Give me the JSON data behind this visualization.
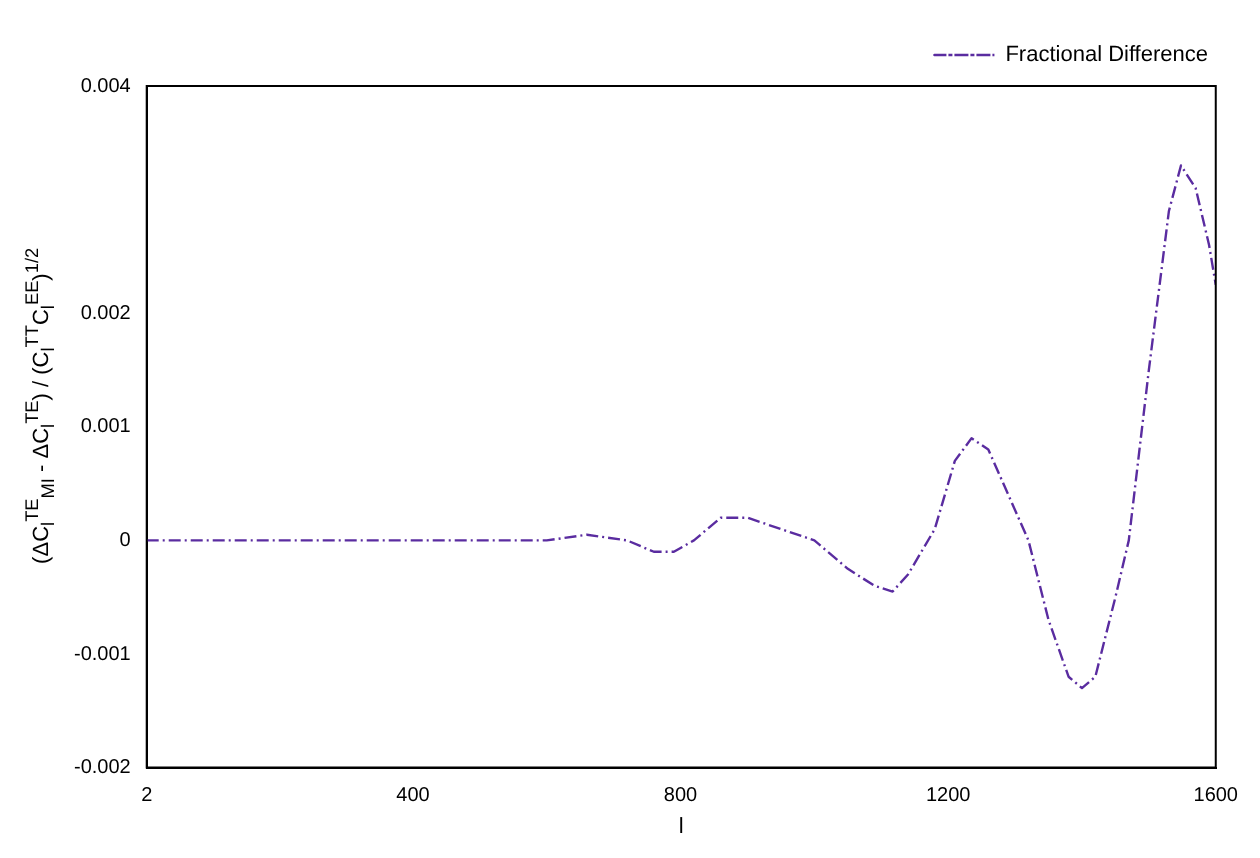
{
  "chart_data": {
    "type": "line",
    "xlabel": "l",
    "ylabel": "(ΔC$_{l}$$^{TE}$$_{MI}$ - ΔC$_{l}$$^{TE}$) / (C$_{l}$$^{TT}$C$_{l}$$^{EE}$)$^{1/2}$",
    "xlim": [
      2,
      1600
    ],
    "xticks": [
      2,
      400,
      800,
      1200,
      1600
    ],
    "ylim": [
      -0.002,
      0.004
    ],
    "yticks": [
      -0.002,
      -0.001,
      0,
      0.001,
      0.002,
      0.004
    ],
    "grid": false,
    "legend": "top right",
    "line_style": "dashed",
    "marker": "none",
    "series": [
      {
        "name": "Fractional Difference",
        "color": "#5a2ca0",
        "x": [
          2,
          100,
          200,
          300,
          400,
          500,
          600,
          660,
          720,
          760,
          790,
          820,
          860,
          900,
          950,
          1000,
          1050,
          1090,
          1117,
          1140,
          1180,
          1210,
          1235,
          1260,
          1290,
          1320,
          1350,
          1380,
          1400,
          1420,
          1450,
          1470,
          1500,
          1530,
          1548,
          1570,
          1590,
          1600
        ],
        "values": [
          0,
          0,
          0,
          0,
          0,
          0,
          0,
          5e-05,
          0,
          -0.0001,
          -0.0001,
          0,
          0.0002,
          0.0002,
          0.0001,
          0,
          -0.00025,
          -0.0004,
          -0.00045,
          -0.0003,
          0.0001,
          0.0007,
          0.0009,
          0.0008,
          0.0004,
          0,
          -0.0007,
          -0.0012,
          -0.0013,
          -0.0012,
          -0.0005,
          0,
          0.0015,
          0.0029,
          0.0033,
          0.0031,
          0.0026,
          0.00225
        ]
      }
    ]
  }
}
